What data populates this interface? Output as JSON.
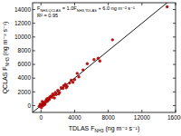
{
  "chart_data": {
    "type": "scatter",
    "x_label": [
      "TDLAS F",
      "NH3",
      " (ng m⁻² s⁻¹)"
    ],
    "y_label": [
      "QCLAS F",
      "NH3",
      " (ng m⁻² s⁻¹)"
    ],
    "annotations": [
      [
        "F",
        "NH3,QCLAS",
        " = 1.0F",
        "NH3,TDLAS",
        " + 6.0 ng m⁻² s⁻¹"
      ],
      [
        "R² = 0.95"
      ]
    ],
    "fit": {
      "slope": 1.0,
      "intercept": 6.0,
      "color": "#000000"
    },
    "color": "#b00000",
    "marker": "circle",
    "x": [
      15000,
      8500,
      6800,
      6300,
      5000,
      4300,
      4000,
      3600,
      3400,
      3100,
      2900,
      2600,
      2400,
      2200,
      2000,
      1800,
      1700,
      1500,
      1300,
      1200,
      1000,
      900,
      800,
      700,
      600,
      500,
      400,
      300,
      200,
      100,
      0,
      -200,
      50,
      250,
      150,
      350,
      450,
      700,
      1100,
      1400,
      1600,
      2100,
      2700,
      3000,
      3800,
      4500,
      5500,
      7000,
      -100
    ],
    "values": [
      14400,
      9600,
      6900,
      6700,
      5200,
      4700,
      3800,
      3700,
      3300,
      2800,
      3100,
      2500,
      2600,
      1900,
      2200,
      1600,
      1900,
      1500,
      1200,
      1400,
      900,
      1100,
      700,
      600,
      800,
      400,
      500,
      200,
      300,
      100,
      50,
      -100,
      -300,
      0,
      600,
      350,
      150,
      1000,
      1300,
      1700,
      1100,
      1700,
      2900,
      2600,
      3400,
      4200,
      6100,
      6500,
      200
    ],
    "xlim": [
      -1000,
      16000
    ],
    "ylim": [
      -1000,
      15000
    ],
    "xticks": [
      0,
      4000,
      8000,
      12000,
      16000
    ],
    "yticks": [
      0,
      2000,
      4000,
      6000,
      8000,
      10000,
      12000,
      14000
    ],
    "grid": false
  }
}
